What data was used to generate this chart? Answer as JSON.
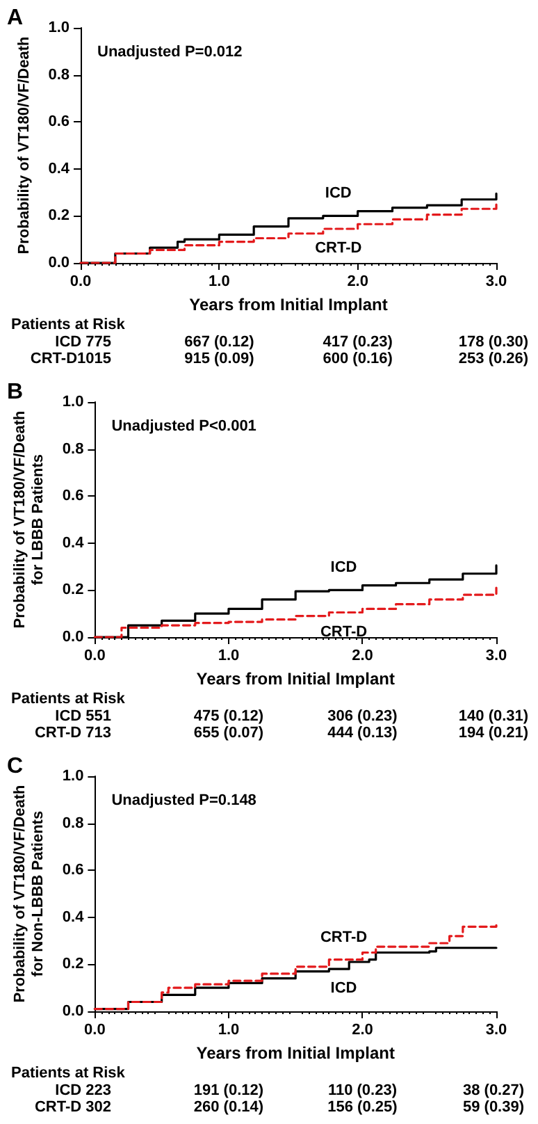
{
  "chart_data": [
    {
      "type": "step",
      "title": "A",
      "xlabel": "Years from Initial Implant",
      "ylabel": "Probability of VT180/VF/Death",
      "marker": "none",
      "grid": false,
      "legend": false,
      "xlim": [
        0,
        3
      ],
      "xticks": [
        {
          "value": 0,
          "label": "0.0"
        },
        {
          "value": 1,
          "label": "1.0"
        },
        {
          "value": 2,
          "label": "2.0"
        },
        {
          "value": 3,
          "label": "3.0"
        }
      ],
      "ylim": [
        0,
        1
      ],
      "yticks": [
        {
          "value": 0,
          "label": "0.0"
        },
        {
          "value": 0.2,
          "label": "0.2"
        },
        {
          "value": 0.4,
          "label": "0.4"
        },
        {
          "value": 0.6,
          "label": "0.6"
        },
        {
          "value": 0.8,
          "label": "0.8"
        },
        {
          "value": 1,
          "label": "1.0"
        }
      ],
      "annotations": [
        "Unadjusted P=0.012",
        "Patients at Risk",
        "ICD 775",
        "667 (0.12)",
        "417 (0.23)",
        "178 (0.30)",
        "CRT-D1015",
        "915 (0.09)",
        "600 (0.16)",
        "253 (0.26)"
      ],
      "series": [
        {
          "name": "ICD",
          "color": "#000000",
          "line_style": "solid",
          "x": [
            0,
            0.25,
            0.5,
            0.7,
            0.75,
            1.0,
            1.25,
            1.5,
            1.75,
            2.0,
            2.25,
            2.5,
            2.75,
            3.0
          ],
          "values": [
            0,
            0.04,
            0.065,
            0.09,
            0.1,
            0.12,
            0.155,
            0.19,
            0.2,
            0.22,
            0.235,
            0.245,
            0.27,
            0.295
          ]
        },
        {
          "name": "CRT-D",
          "color": "#e31a1c",
          "line_style": "dashed",
          "x": [
            0,
            0.25,
            0.5,
            0.75,
            1.0,
            1.25,
            1.5,
            1.75,
            2.0,
            2.25,
            2.5,
            2.75,
            3.0
          ],
          "values": [
            0,
            0.04,
            0.055,
            0.075,
            0.09,
            0.105,
            0.125,
            0.145,
            0.165,
            0.185,
            0.205,
            0.23,
            0.255
          ]
        }
      ]
    },
    {
      "type": "step",
      "title": "B",
      "xlabel": "Years from Initial Implant",
      "ylabel": "Probability of VT180/VF/Death\nfor LBBB Patients",
      "marker": "none",
      "grid": false,
      "legend": false,
      "xlim": [
        0,
        3
      ],
      "xticks": [
        {
          "value": 0,
          "label": "0.0"
        },
        {
          "value": 1,
          "label": "1.0"
        },
        {
          "value": 2,
          "label": "2.0"
        },
        {
          "value": 3,
          "label": "3.0"
        }
      ],
      "ylim": [
        0,
        1
      ],
      "yticks": [
        {
          "value": 0,
          "label": "0.0"
        },
        {
          "value": 0.2,
          "label": "0.2"
        },
        {
          "value": 0.4,
          "label": "0.4"
        },
        {
          "value": 0.6,
          "label": "0.6"
        },
        {
          "value": 0.8,
          "label": "0.8"
        },
        {
          "value": 1,
          "label": "1.0"
        }
      ],
      "annotations": [
        "Unadjusted P<0.001",
        "Patients at Risk",
        "ICD 551",
        "475 (0.12)",
        "306 (0.23)",
        "140 (0.31)",
        "CRT-D 713",
        "655 (0.07)",
        "444 (0.13)",
        "194 (0.21)"
      ],
      "series": [
        {
          "name": "ICD",
          "color": "#000000",
          "line_style": "solid",
          "x": [
            0,
            0.25,
            0.5,
            0.75,
            1.0,
            1.25,
            1.5,
            1.75,
            2.0,
            2.25,
            2.5,
            2.75,
            3.0
          ],
          "values": [
            0,
            0.05,
            0.07,
            0.1,
            0.12,
            0.16,
            0.195,
            0.2,
            0.22,
            0.23,
            0.245,
            0.27,
            0.305
          ]
        },
        {
          "name": "CRT-D",
          "color": "#e31a1c",
          "line_style": "dashed",
          "x": [
            0,
            0.2,
            0.5,
            0.75,
            1.0,
            1.25,
            1.5,
            1.75,
            2.0,
            2.25,
            2.5,
            2.75,
            3.0
          ],
          "values": [
            0,
            0.04,
            0.05,
            0.06,
            0.065,
            0.075,
            0.09,
            0.105,
            0.12,
            0.14,
            0.16,
            0.18,
            0.21
          ]
        }
      ]
    },
    {
      "type": "step",
      "title": "C",
      "xlabel": "Years from Initial Implant",
      "ylabel": "Probability of VT180/VF/Death\nfor Non-LBBB Patients",
      "marker": "none",
      "grid": false,
      "legend": false,
      "xlim": [
        0,
        3
      ],
      "xticks": [
        {
          "value": 0,
          "label": "0.0"
        },
        {
          "value": 1,
          "label": "1.0"
        },
        {
          "value": 2,
          "label": "2.0"
        },
        {
          "value": 3,
          "label": "3.0"
        }
      ],
      "ylim": [
        0,
        1
      ],
      "yticks": [
        {
          "value": 0,
          "label": "0.0"
        },
        {
          "value": 0.2,
          "label": "0.2"
        },
        {
          "value": 0.4,
          "label": "0.4"
        },
        {
          "value": 0.6,
          "label": "0.6"
        },
        {
          "value": 0.8,
          "label": "0.8"
        },
        {
          "value": 1,
          "label": "1.0"
        }
      ],
      "annotations": [
        "Unadjusted P=0.148",
        "Patients at Risk",
        "ICD 223",
        "191 (0.12)",
        "110 (0.23)",
        "38 (0.27)",
        "CRT-D 302",
        "260 (0.14)",
        "156 (0.25)",
        "59 (0.39)"
      ],
      "series": [
        {
          "name": "ICD",
          "color": "#000000",
          "line_style": "solid",
          "x": [
            0,
            0.25,
            0.5,
            0.75,
            1.0,
            1.25,
            1.5,
            1.75,
            1.9,
            2.05,
            2.1,
            2.5,
            2.55,
            3.0
          ],
          "values": [
            0.01,
            0.04,
            0.07,
            0.1,
            0.12,
            0.14,
            0.17,
            0.18,
            0.21,
            0.22,
            0.25,
            0.255,
            0.27,
            0.27
          ]
        },
        {
          "name": "CRT-D",
          "color": "#e31a1c",
          "line_style": "dashed",
          "x": [
            0,
            0.25,
            0.5,
            0.55,
            0.75,
            1.0,
            1.25,
            1.5,
            1.75,
            2.0,
            2.1,
            2.5,
            2.65,
            2.75,
            3.0
          ],
          "values": [
            0.01,
            0.04,
            0.08,
            0.1,
            0.115,
            0.13,
            0.16,
            0.19,
            0.22,
            0.25,
            0.275,
            0.29,
            0.32,
            0.36,
            0.37
          ]
        }
      ]
    }
  ]
}
